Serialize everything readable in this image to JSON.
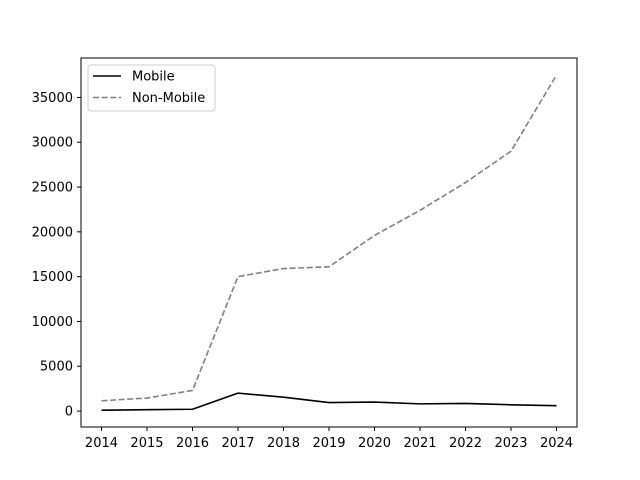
{
  "chart_data": {
    "type": "line",
    "x": [
      2014,
      2015,
      2016,
      2017,
      2018,
      2019,
      2020,
      2021,
      2022,
      2023,
      2024
    ],
    "series": [
      {
        "name": "Mobile",
        "color": "#000000",
        "style": "solid",
        "values": [
          100,
          150,
          200,
          2000,
          1550,
          950,
          1000,
          800,
          850,
          700,
          600
        ]
      },
      {
        "name": "Non-Mobile",
        "color": "#808080",
        "style": "dashed",
        "values": [
          1150,
          1450,
          2300,
          15000,
          15900,
          16100,
          19600,
          22400,
          25500,
          29000,
          37500
        ]
      }
    ],
    "xlim": [
      2013.55,
      2024.45
    ],
    "ylim": [
      -1780,
      39400
    ],
    "yticks": [
      0,
      5000,
      10000,
      15000,
      20000,
      25000,
      30000,
      35000
    ],
    "xticks": [
      2014,
      2015,
      2016,
      2017,
      2018,
      2019,
      2020,
      2021,
      2022,
      2023,
      2024
    ],
    "title": "",
    "xlabel": "",
    "ylabel": "",
    "grid": false,
    "legend_position": "top-left"
  }
}
